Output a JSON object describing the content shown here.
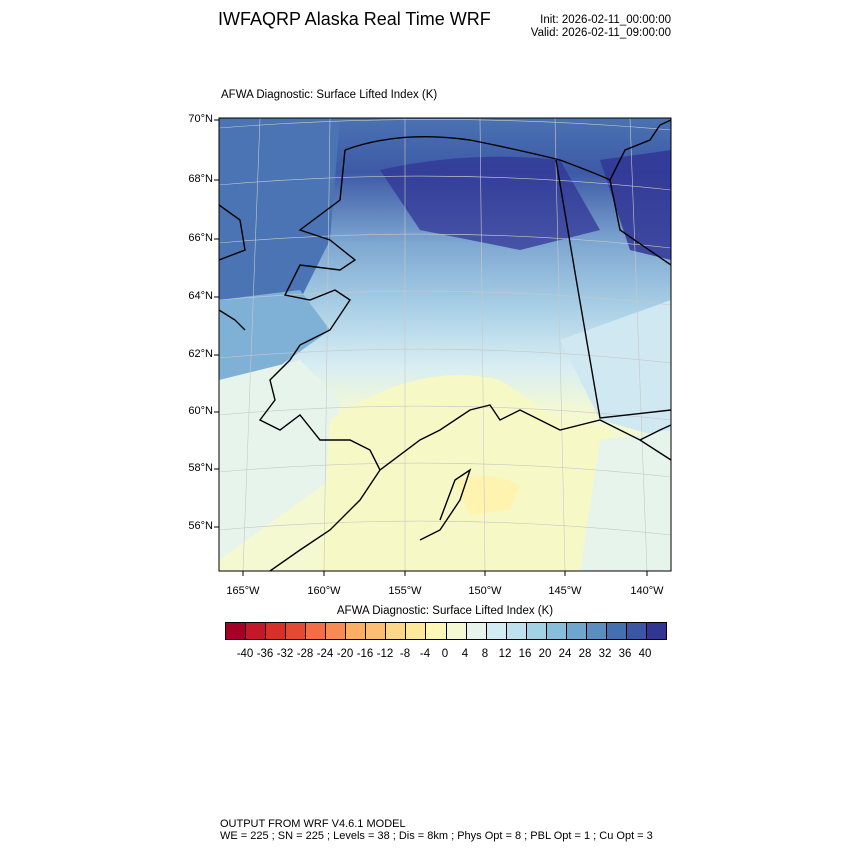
{
  "header": {
    "title": "IWFAQRP Alaska Real Time WRF",
    "init": "Init: 2026-02-11_00:00:00",
    "valid": "Valid: 2026-02-11_09:00:00"
  },
  "plot": {
    "subtitle": "AFWA Diagnostic: Surface Lifted Index   (K)",
    "lat_ticks": [
      "70°N",
      "68°N",
      "66°N",
      "64°N",
      "62°N",
      "60°N",
      "58°N",
      "56°N"
    ],
    "lon_ticks": [
      "165°W",
      "160°W",
      "155°W",
      "150°W",
      "145°W",
      "140°W"
    ]
  },
  "colorbar": {
    "title": "AFWA Diagnostic: Surface Lifted Index  (K)",
    "labels": [
      "-40",
      "-36",
      "-32",
      "-28",
      "-24",
      "-20",
      "-16",
      "-12",
      "-8",
      "-4",
      "0",
      "4",
      "8",
      "12",
      "16",
      "20",
      "24",
      "28",
      "32",
      "36",
      "40"
    ],
    "colors": [
      "#a50026",
      "#c2182a",
      "#d73027",
      "#e34a33",
      "#f46d43",
      "#f88b52",
      "#fdae61",
      "#fdbe72",
      "#fed687",
      "#fee89a",
      "#fff8b4",
      "#f4f9d2",
      "#e6f4ec",
      "#d2ecf4",
      "#bde2ee",
      "#a3d2e6",
      "#87bedc",
      "#6ea6ce",
      "#5a8dc0",
      "#4470b1",
      "#3a56a4",
      "#313695"
    ]
  },
  "footer": {
    "line1": "OUTPUT FROM WRF V4.6.1 MODEL",
    "line2": "WE = 225 ; SN = 225 ; Levels = 38 ; Dis = 8km ; Phys Opt = 8 ; PBL Opt = 1 ; Cu Opt = 3"
  }
}
